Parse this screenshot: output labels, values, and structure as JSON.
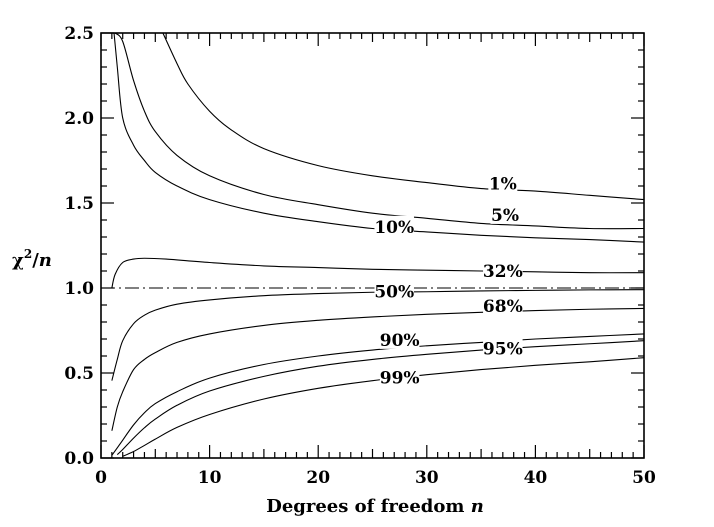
{
  "chart_data": {
    "type": "line",
    "xlabel_main": "Degrees of freedom ",
    "xlabel_italic": "n",
    "ylabel_chi": "χ",
    "ylabel_sup": "2",
    "ylabel_slash": "/",
    "ylabel_n": "n",
    "xlim": [
      0,
      50
    ],
    "ylim": [
      0,
      2.5
    ],
    "x_ticks": [
      0,
      10,
      20,
      30,
      40,
      50
    ],
    "x_tick_labels": [
      "0",
      "10",
      "20",
      "30",
      "40",
      "50"
    ],
    "y_ticks": [
      0,
      0.5,
      1,
      1.5,
      2,
      2.5
    ],
    "y_tick_labels": [
      "0.0",
      "0.5",
      "1.0",
      "1.5",
      "2.0",
      "2.5"
    ],
    "x_minor_step": 1,
    "y_minor_step": 0.1,
    "grid": false,
    "reference_line": {
      "y": 1.0,
      "style": "dash-dot"
    },
    "series": [
      {
        "name": "1%",
        "label_at": {
          "x": 37.0,
          "y": 1.615
        },
        "points": [
          [
            5.7,
            2.5
          ],
          [
            7,
            2.32
          ],
          [
            8,
            2.2
          ],
          [
            10,
            2.04
          ],
          [
            12,
            1.93
          ],
          [
            15,
            1.82
          ],
          [
            20,
            1.72
          ],
          [
            25,
            1.66
          ],
          [
            30,
            1.62
          ],
          [
            35,
            1.585
          ],
          [
            40,
            1.57
          ],
          [
            45,
            1.545
          ],
          [
            50,
            1.52
          ]
        ]
      },
      {
        "name": "5%",
        "label_at": {
          "x": 37.2,
          "y": 1.43
        },
        "points": [
          [
            1.3,
            2.5
          ],
          [
            2,
            2.45
          ],
          [
            3,
            2.22
          ],
          [
            4,
            2.04
          ],
          [
            5,
            1.92
          ],
          [
            7,
            1.78
          ],
          [
            10,
            1.66
          ],
          [
            15,
            1.55
          ],
          [
            20,
            1.49
          ],
          [
            25,
            1.44
          ],
          [
            30,
            1.41
          ],
          [
            35,
            1.38
          ],
          [
            40,
            1.365
          ],
          [
            45,
            1.35
          ],
          [
            50,
            1.35
          ]
        ]
      },
      {
        "name": "10%",
        "label_at": {
          "x": 27.0,
          "y": 1.36
        },
        "points": [
          [
            1.2,
            2.5
          ],
          [
            1.5,
            2.3
          ],
          [
            2,
            2.0
          ],
          [
            3,
            1.84
          ],
          [
            4,
            1.75
          ],
          [
            5,
            1.68
          ],
          [
            7,
            1.6
          ],
          [
            10,
            1.52
          ],
          [
            15,
            1.44
          ],
          [
            20,
            1.39
          ],
          [
            25,
            1.35
          ],
          [
            30,
            1.33
          ],
          [
            35,
            1.31
          ],
          [
            40,
            1.295
          ],
          [
            45,
            1.285
          ],
          [
            50,
            1.27
          ]
        ]
      },
      {
        "name": "32%",
        "label_at": {
          "x": 37.0,
          "y": 1.1
        },
        "points": [
          [
            1,
            1.0
          ],
          [
            1.3,
            1.08
          ],
          [
            2,
            1.15
          ],
          [
            3,
            1.17
          ],
          [
            4,
            1.175
          ],
          [
            6,
            1.17
          ],
          [
            10,
            1.15
          ],
          [
            15,
            1.13
          ],
          [
            20,
            1.12
          ],
          [
            25,
            1.11
          ],
          [
            30,
            1.105
          ],
          [
            35,
            1.1
          ],
          [
            40,
            1.095
          ],
          [
            45,
            1.09
          ],
          [
            50,
            1.09
          ]
        ]
      },
      {
        "name": "50%",
        "label_at": {
          "x": 27.0,
          "y": 0.98
        },
        "points": [
          [
            1,
            0.455
          ],
          [
            1.5,
            0.58
          ],
          [
            2,
            0.69
          ],
          [
            3,
            0.79
          ],
          [
            4,
            0.84
          ],
          [
            5,
            0.87
          ],
          [
            7,
            0.905
          ],
          [
            10,
            0.93
          ],
          [
            15,
            0.955
          ],
          [
            20,
            0.967
          ],
          [
            25,
            0.975
          ],
          [
            30,
            0.978
          ],
          [
            35,
            0.983
          ],
          [
            40,
            0.986
          ],
          [
            45,
            0.989
          ],
          [
            50,
            0.99
          ]
        ]
      },
      {
        "name": "68%",
        "label_at": {
          "x": 37.0,
          "y": 0.895
        },
        "points": [
          [
            1,
            0.16
          ],
          [
            1.5,
            0.3
          ],
          [
            2,
            0.39
          ],
          [
            3,
            0.52
          ],
          [
            4,
            0.58
          ],
          [
            5,
            0.62
          ],
          [
            7,
            0.68
          ],
          [
            10,
            0.73
          ],
          [
            15,
            0.78
          ],
          [
            20,
            0.81
          ],
          [
            25,
            0.83
          ],
          [
            30,
            0.845
          ],
          [
            35,
            0.857
          ],
          [
            40,
            0.867
          ],
          [
            45,
            0.875
          ],
          [
            50,
            0.88
          ]
        ]
      },
      {
        "name": "90%",
        "label_at": {
          "x": 27.5,
          "y": 0.695
        },
        "points": [
          [
            1,
            0.0158
          ],
          [
            1.5,
            0.06
          ],
          [
            2,
            0.105
          ],
          [
            3,
            0.195
          ],
          [
            4,
            0.266
          ],
          [
            5,
            0.32
          ],
          [
            7,
            0.39
          ],
          [
            10,
            0.47
          ],
          [
            15,
            0.55
          ],
          [
            20,
            0.6
          ],
          [
            25,
            0.635
          ],
          [
            30,
            0.66
          ],
          [
            35,
            0.68
          ],
          [
            40,
            0.7
          ],
          [
            45,
            0.715
          ],
          [
            50,
            0.73
          ]
        ]
      },
      {
        "name": "95%",
        "label_at": {
          "x": 37.0,
          "y": 0.645
        },
        "points": [
          [
            1.5,
            0.02
          ],
          [
            2,
            0.05
          ],
          [
            3,
            0.117
          ],
          [
            4,
            0.178
          ],
          [
            5,
            0.229
          ],
          [
            7,
            0.31
          ],
          [
            10,
            0.394
          ],
          [
            15,
            0.48
          ],
          [
            20,
            0.54
          ],
          [
            25,
            0.58
          ],
          [
            30,
            0.61
          ],
          [
            35,
            0.635
          ],
          [
            40,
            0.655
          ],
          [
            45,
            0.672
          ],
          [
            50,
            0.69
          ]
        ]
      },
      {
        "name": "99%",
        "label_at": {
          "x": 27.5,
          "y": 0.475
        },
        "points": [
          [
            2,
            0.01
          ],
          [
            3,
            0.038
          ],
          [
            4,
            0.074
          ],
          [
            5,
            0.111
          ],
          [
            7,
            0.18
          ],
          [
            10,
            0.256
          ],
          [
            15,
            0.347
          ],
          [
            20,
            0.41
          ],
          [
            25,
            0.455
          ],
          [
            30,
            0.49
          ],
          [
            35,
            0.52
          ],
          [
            40,
            0.545
          ],
          [
            45,
            0.566
          ],
          [
            50,
            0.59
          ]
        ]
      }
    ]
  }
}
